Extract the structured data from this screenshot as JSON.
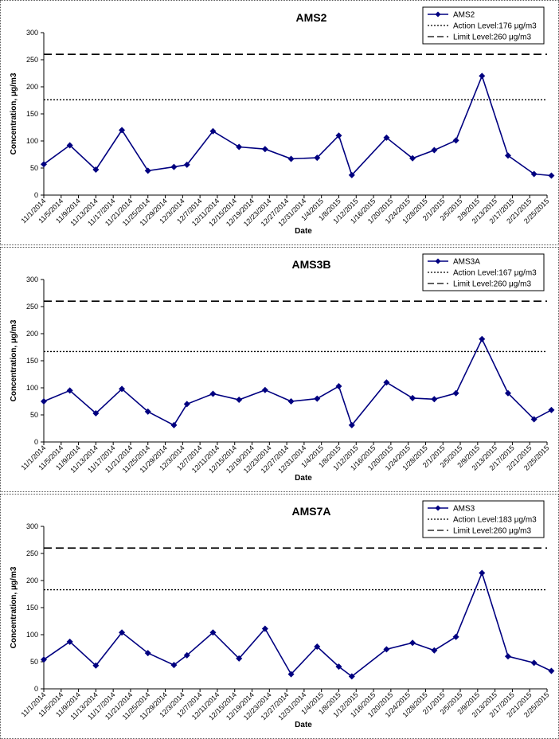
{
  "chart_data": [
    {
      "type": "line",
      "title": "AMS2",
      "xlabel": "Date",
      "ylabel": "Concentration, μg/m3",
      "ylim": [
        0,
        300
      ],
      "yticks": [
        0,
        50,
        100,
        150,
        200,
        250,
        300
      ],
      "x": [
        "11/1/2014",
        "11/5/2014",
        "11/9/2014",
        "11/13/2014",
        "11/17/2014",
        "11/21/2014",
        "11/25/2014",
        "11/29/2014",
        "12/3/2014",
        "12/7/2014",
        "12/11/2014",
        "12/15/2014",
        "12/19/2014",
        "12/23/2014",
        "12/27/2014",
        "12/31/2014",
        "1/4/2015",
        "1/8/2015",
        "1/12/2015",
        "1/16/2015",
        "1/20/2015",
        "1/24/2015",
        "1/28/2015",
        "2/1/2015",
        "2/5/2015",
        "2/9/2015",
        "2/13/2015",
        "2/17/2015",
        "2/21/2015",
        "2/25/2015"
      ],
      "series": [
        {
          "name": "AMS2",
          "x": [
            "11/1/2014",
            "11/7/2014",
            "11/13/2014",
            "11/19/2014",
            "11/25/2014",
            "12/1/2014",
            "12/4/2014",
            "12/10/2014",
            "12/16/2014",
            "12/22/2014",
            "12/28/2014",
            "1/3/2015",
            "1/8/2015",
            "1/11/2015",
            "1/19/2015",
            "1/25/2015",
            "1/30/2015",
            "2/4/2015",
            "2/10/2015",
            "2/16/2015",
            "2/22/2015",
            "2/26/2015"
          ],
          "values": [
            57,
            92,
            47,
            120,
            45,
            52,
            56,
            118,
            89,
            85,
            67,
            69,
            110,
            37,
            106,
            68,
            83,
            101,
            220,
            73,
            39,
            36
          ]
        }
      ],
      "reference_lines": [
        {
          "label": "Action Level:176 μg/m3",
          "value": 176,
          "style": "dotted"
        },
        {
          "label": "Limit Level:260 μg/m3",
          "value": 260,
          "style": "dashed"
        }
      ],
      "legend": "top-right",
      "color": "#000080"
    },
    {
      "type": "line",
      "title": "AMS3B",
      "xlabel": "Date",
      "ylabel": "Concentration, μg/m3",
      "ylim": [
        0,
        300
      ],
      "yticks": [
        0,
        50,
        100,
        150,
        200,
        250,
        300
      ],
      "x": [
        "11/1/2014",
        "11/5/2014",
        "11/9/2014",
        "11/13/2014",
        "11/17/2014",
        "11/21/2014",
        "11/25/2014",
        "11/29/2014",
        "12/3/2014",
        "12/7/2014",
        "12/11/2014",
        "12/15/2014",
        "12/19/2014",
        "12/23/2014",
        "12/27/2014",
        "12/31/2014",
        "1/4/2015",
        "1/8/2015",
        "1/12/2015",
        "1/16/2015",
        "1/20/2015",
        "1/24/2015",
        "1/28/2015",
        "2/1/2015",
        "2/5/2015",
        "2/9/2015",
        "2/13/2015",
        "2/17/2015",
        "2/21/2015",
        "2/25/2015"
      ],
      "series": [
        {
          "name": "AMS3A",
          "x": [
            "11/1/2014",
            "11/7/2014",
            "11/13/2014",
            "11/19/2014",
            "11/25/2014",
            "12/1/2014",
            "12/4/2014",
            "12/10/2014",
            "12/16/2014",
            "12/22/2014",
            "12/28/2014",
            "1/3/2015",
            "1/8/2015",
            "1/11/2015",
            "1/19/2015",
            "1/25/2015",
            "1/30/2015",
            "2/4/2015",
            "2/10/2015",
            "2/16/2015",
            "2/22/2015",
            "2/26/2015"
          ],
          "values": [
            75,
            95,
            53,
            98,
            56,
            31,
            70,
            89,
            78,
            96,
            75,
            80,
            103,
            31,
            110,
            81,
            79,
            90,
            190,
            90,
            42,
            59
          ]
        }
      ],
      "reference_lines": [
        {
          "label": "Action Level:167 μg/m3",
          "value": 167,
          "style": "dotted"
        },
        {
          "label": "Limit Level:260 μg/m3",
          "value": 260,
          "style": "dashed"
        }
      ],
      "legend": "top-right",
      "color": "#000080"
    },
    {
      "type": "line",
      "title": "AMS7A",
      "xlabel": "Date",
      "ylabel": "Concentration, μg/m3",
      "ylim": [
        0,
        300
      ],
      "yticks": [
        0,
        50,
        100,
        150,
        200,
        250,
        300
      ],
      "x": [
        "11/1/2014",
        "11/5/2014",
        "11/9/2014",
        "11/13/2014",
        "11/17/2014",
        "11/21/2014",
        "11/25/2014",
        "11/29/2014",
        "12/3/2014",
        "12/7/2014",
        "12/11/2014",
        "12/15/2014",
        "12/19/2014",
        "12/23/2014",
        "12/27/2014",
        "12/31/2014",
        "1/4/2015",
        "1/8/2015",
        "1/12/2015",
        "1/16/2015",
        "1/20/2015",
        "1/24/2015",
        "1/28/2015",
        "2/1/2015",
        "2/5/2015",
        "2/9/2015",
        "2/13/2015",
        "2/17/2015",
        "2/21/2015",
        "2/25/2015"
      ],
      "series": [
        {
          "name": "AMS3",
          "x": [
            "11/1/2014",
            "11/7/2014",
            "11/13/2014",
            "11/19/2014",
            "11/25/2014",
            "12/1/2014",
            "12/4/2014",
            "12/10/2014",
            "12/16/2014",
            "12/22/2014",
            "12/28/2014",
            "1/3/2015",
            "1/8/2015",
            "1/11/2015",
            "1/19/2015",
            "1/25/2015",
            "1/30/2015",
            "2/4/2015",
            "2/10/2015",
            "2/16/2015",
            "2/22/2015",
            "2/26/2015"
          ],
          "values": [
            54,
            87,
            43,
            104,
            66,
            44,
            62,
            104,
            56,
            111,
            27,
            78,
            41,
            23,
            73,
            85,
            71,
            96,
            214,
            60,
            48,
            33
          ]
        }
      ],
      "reference_lines": [
        {
          "label": "Action Level:183 μg/m3",
          "value": 183,
          "style": "dotted"
        },
        {
          "label": "Limit Level:260 μg/m3",
          "value": 260,
          "style": "dashed"
        }
      ],
      "legend": "top-right",
      "color": "#000080"
    }
  ]
}
